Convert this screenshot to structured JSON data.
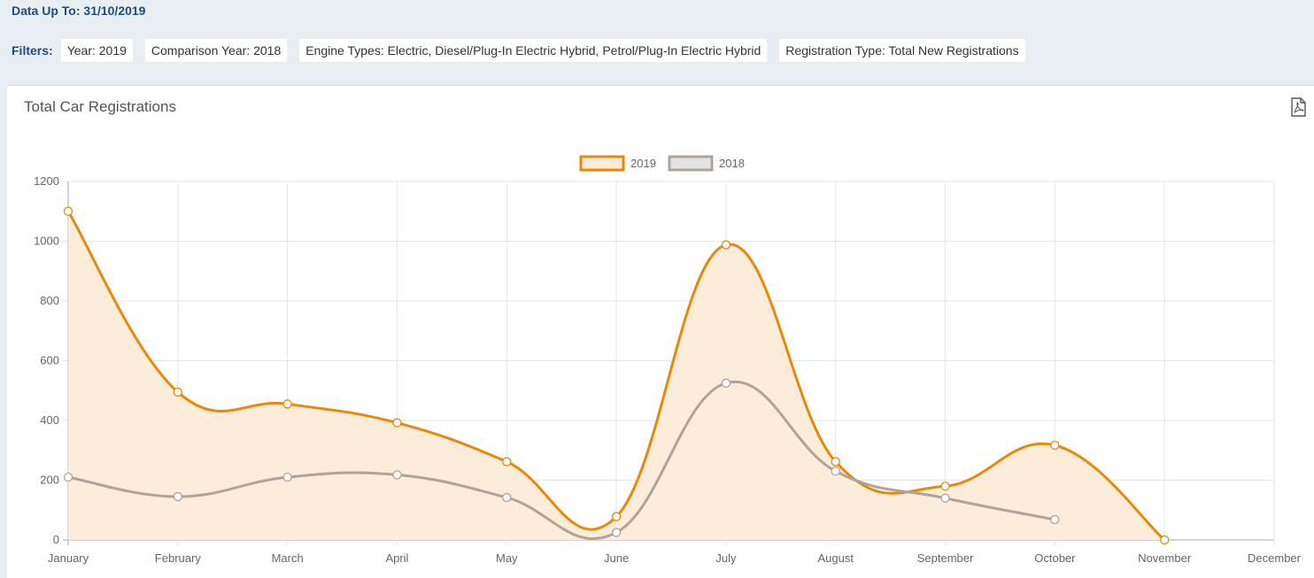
{
  "header": {
    "data_up_to": "Data Up To: 31/10/2019",
    "filters_label": "Filters:",
    "filters": [
      "Year: 2019",
      "Comparison Year: 2018",
      "Engine Types: Electric, Diesel/Plug-In Electric Hybrid, Petrol/Plug-In Electric Hybrid",
      "Registration Type: Total New Registrations"
    ]
  },
  "panel": {
    "title": "Total Car Registrations",
    "export_icon": "pdf-icon"
  },
  "colors": {
    "series_2019": "#e8890c",
    "series_2019_fill": "#fcecda",
    "series_2018": "#b0a498",
    "series_2018_fill": "#e3e3e3",
    "grid": "#e6e6e6"
  },
  "chart_data": {
    "type": "area",
    "categories": [
      "January",
      "February",
      "March",
      "April",
      "May",
      "June",
      "July",
      "August",
      "September",
      "October",
      "November",
      "December"
    ],
    "series": [
      {
        "name": "2019",
        "values": [
          1100,
          495,
          455,
          392,
          262,
          78,
          988,
          262,
          180,
          317,
          0,
          null
        ]
      },
      {
        "name": "2018",
        "values": [
          210,
          145,
          210,
          218,
          142,
          25,
          525,
          230,
          140,
          68,
          null,
          null
        ]
      }
    ],
    "ylim": [
      0,
      1200
    ],
    "yticks": [
      0,
      200,
      400,
      600,
      800,
      1000,
      1200
    ],
    "grid": true,
    "legend": "top-center"
  }
}
